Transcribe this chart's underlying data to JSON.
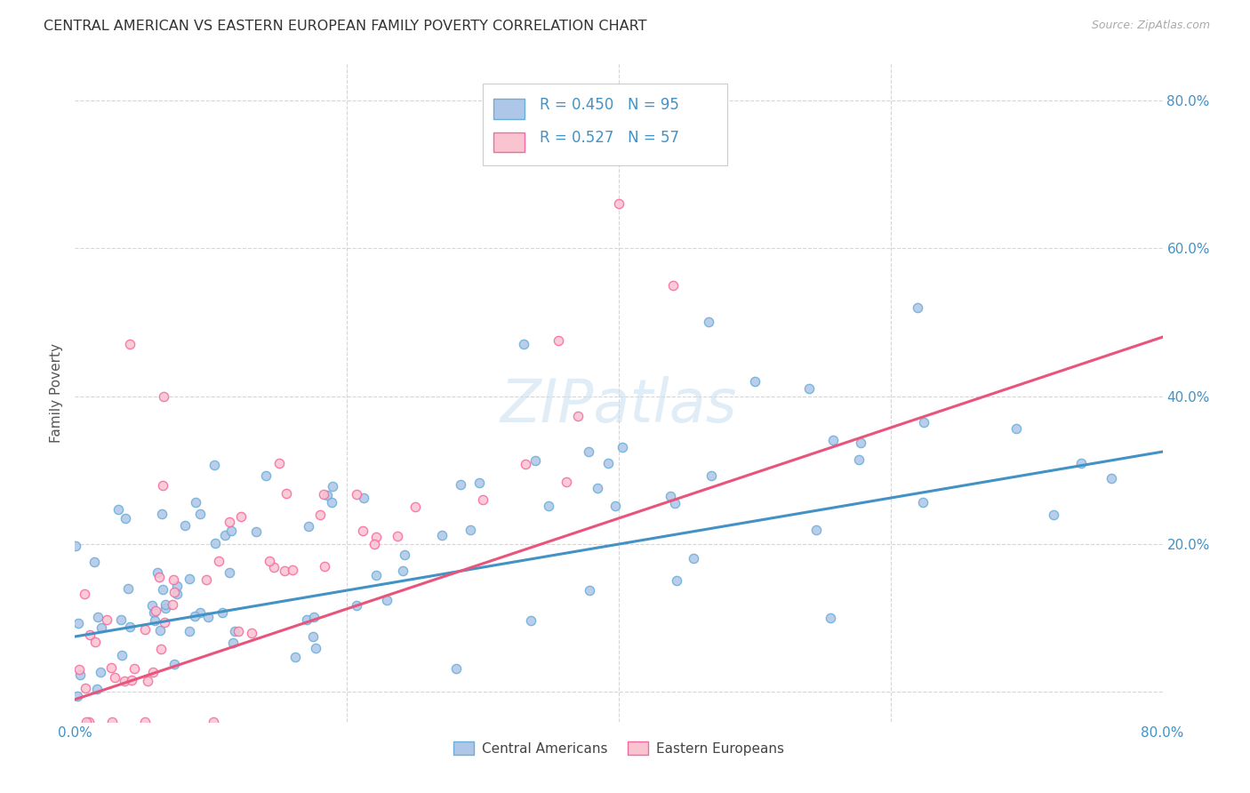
{
  "title": "CENTRAL AMERICAN VS EASTERN EUROPEAN FAMILY POVERTY CORRELATION CHART",
  "source": "Source: ZipAtlas.com",
  "ylabel": "Family Poverty",
  "xlim": [
    0,
    0.8
  ],
  "ylim": [
    -0.04,
    0.85
  ],
  "blue_face_color": "#aec6e8",
  "blue_edge_color": "#6baed6",
  "pink_face_color": "#f9c4cf",
  "pink_edge_color": "#f768a1",
  "blue_line_color": "#4292c6",
  "pink_line_color": "#e8547a",
  "title_color": "#333333",
  "source_color": "#aaaaaa",
  "legend_text_color": "#4292c6",
  "r_blue": 0.45,
  "n_blue": 95,
  "r_pink": 0.527,
  "n_pink": 57,
  "watermark": "ZIPatlas",
  "background_color": "#ffffff",
  "grid_color": "#cccccc",
  "legend_entries": [
    "Central Americans",
    "Eastern Europeans"
  ],
  "blue_line_y0": 0.075,
  "blue_line_y1": 0.325,
  "pink_line_y0": -0.01,
  "pink_line_y1": 0.48
}
